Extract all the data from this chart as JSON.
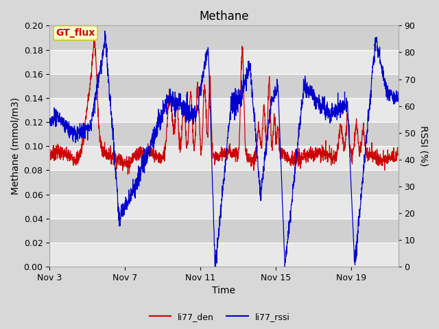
{
  "title": "Methane",
  "xlabel": "Time",
  "ylabel_left": "Methane (mmol/m3)",
  "ylabel_right": "RSSI (%)",
  "annotation_text": "GT_flux",
  "annotation_bg": "#ffffcc",
  "annotation_border": "#cccc00",
  "annotation_text_color": "#cc0000",
  "left_ylim": [
    0.0,
    0.2
  ],
  "right_ylim": [
    0,
    90
  ],
  "left_yticks": [
    0.0,
    0.02,
    0.04,
    0.06,
    0.08,
    0.1,
    0.12,
    0.14,
    0.16,
    0.18,
    0.2
  ],
  "right_yticks": [
    0,
    10,
    20,
    30,
    40,
    50,
    60,
    70,
    80,
    90
  ],
  "x_tick_labels": [
    "Nov 3",
    "Nov 7",
    "Nov 11",
    "Nov 15",
    "Nov 19"
  ],
  "bg_color": "#d8d8d8",
  "plot_bg_light": "#e8e8e8",
  "plot_bg_dark": "#d0d0d0",
  "grid_color": "#ffffff",
  "line_red_color": "#cc0000",
  "line_blue_color": "#0000cc",
  "legend_labels": [
    "li77_den",
    "li77_rssi"
  ],
  "title_fontsize": 12,
  "axis_fontsize": 10,
  "tick_fontsize": 9
}
